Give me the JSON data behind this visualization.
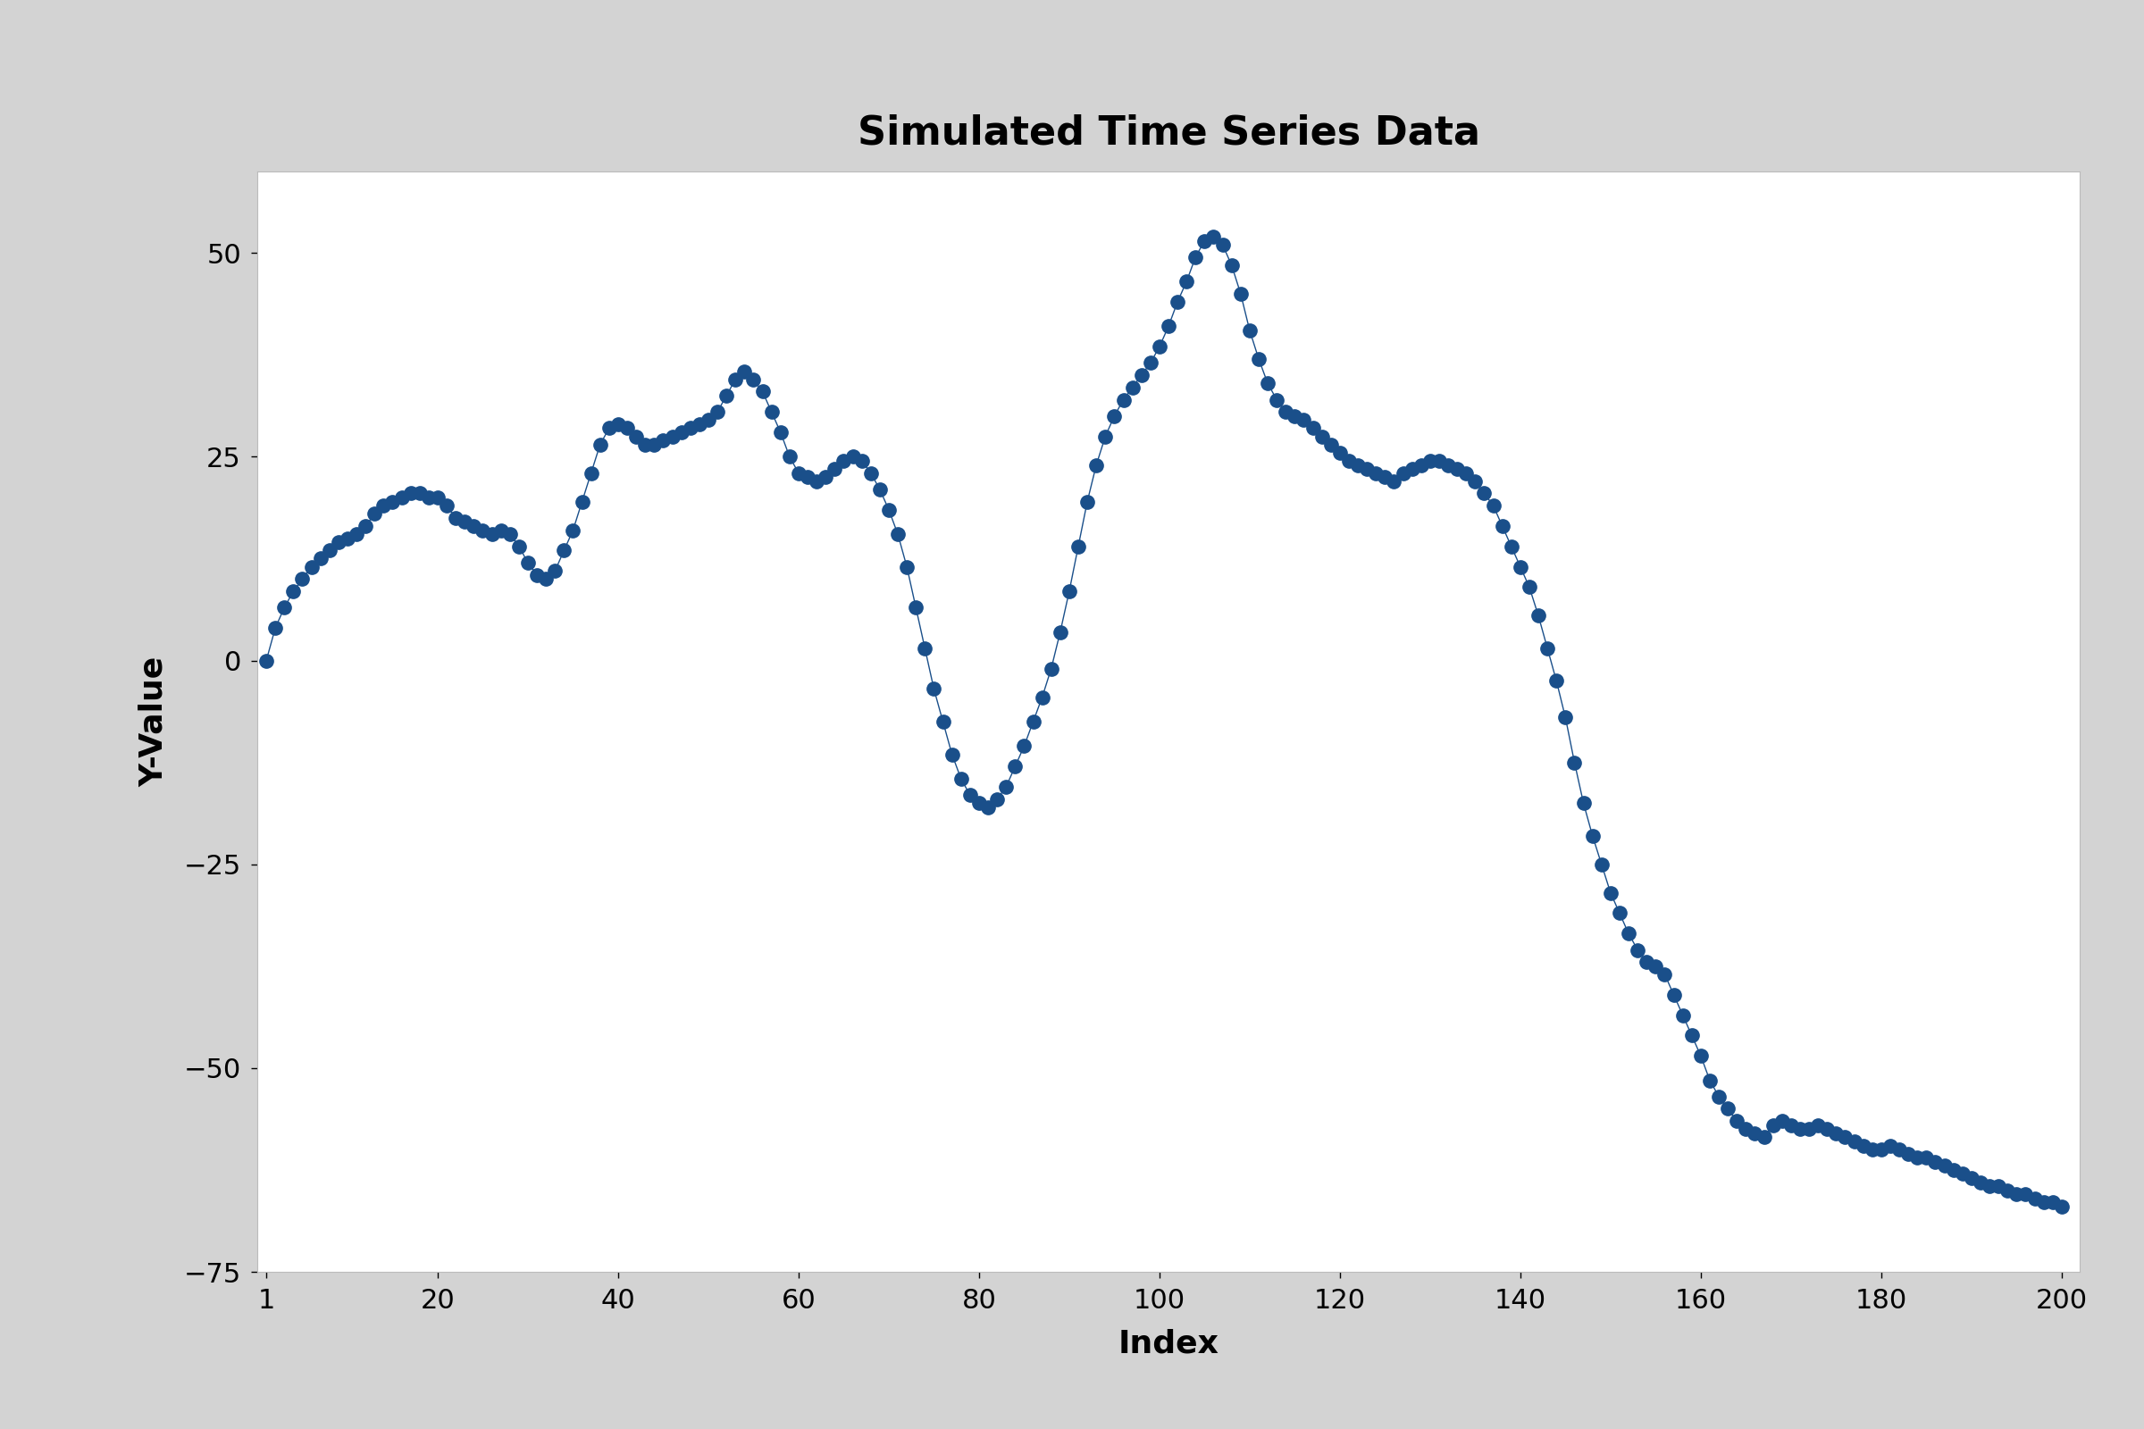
{
  "title": "Simulated Time Series Data",
  "xlabel": "Index",
  "ylabel": "Y-Value",
  "xlim": [
    1,
    200
  ],
  "ylim": [
    -75,
    60
  ],
  "xticks": [
    1,
    20,
    40,
    60,
    80,
    100,
    120,
    140,
    160,
    180,
    200
  ],
  "yticks": [
    -75,
    -50,
    -25,
    0,
    25,
    50
  ],
  "bg_outer": "#d3d3d3",
  "bg_inner": "#ffffff",
  "line_color": "#1a4f8a",
  "dot_color": "#1a4f8a",
  "title_fontsize": 32,
  "label_fontsize": 26,
  "tick_fontsize": 22,
  "line_width": 1.0,
  "marker_size": 11,
  "values": [
    0.0,
    4.0,
    6.5,
    8.5,
    10.0,
    11.5,
    12.5,
    13.5,
    14.5,
    15.0,
    15.5,
    16.5,
    18.0,
    19.0,
    19.5,
    20.0,
    20.5,
    20.5,
    20.0,
    20.0,
    19.0,
    17.5,
    17.0,
    16.5,
    16.0,
    15.5,
    16.0,
    15.5,
    14.0,
    12.0,
    10.5,
    10.0,
    11.0,
    13.5,
    16.0,
    19.5,
    23.0,
    26.5,
    28.5,
    29.0,
    28.5,
    27.5,
    26.5,
    26.5,
    27.0,
    27.5,
    28.0,
    28.5,
    29.0,
    29.5,
    30.5,
    32.5,
    34.5,
    35.5,
    34.5,
    33.0,
    30.5,
    28.0,
    25.0,
    23.0,
    22.5,
    22.0,
    22.5,
    23.5,
    24.5,
    25.0,
    24.5,
    23.0,
    21.0,
    18.5,
    15.5,
    11.5,
    6.5,
    1.5,
    -3.5,
    -7.5,
    -11.5,
    -14.5,
    -16.5,
    -17.5,
    -18.0,
    -17.0,
    -15.5,
    -13.0,
    -10.5,
    -7.5,
    -4.5,
    -1.0,
    3.5,
    8.5,
    14.0,
    19.5,
    24.0,
    27.5,
    30.0,
    32.0,
    33.5,
    35.0,
    36.5,
    38.5,
    41.0,
    44.0,
    46.5,
    49.5,
    51.5,
    52.0,
    51.0,
    48.5,
    45.0,
    40.5,
    37.0,
    34.0,
    32.0,
    30.5,
    30.0,
    29.5,
    28.5,
    27.5,
    26.5,
    25.5,
    24.5,
    24.0,
    23.5,
    23.0,
    22.5,
    22.0,
    23.0,
    23.5,
    24.0,
    24.5,
    24.5,
    24.0,
    23.5,
    23.0,
    22.0,
    20.5,
    19.0,
    16.5,
    14.0,
    11.5,
    9.0,
    5.5,
    1.5,
    -2.5,
    -7.0,
    -12.5,
    -17.5,
    -21.5,
    -25.0,
    -28.5,
    -31.0,
    -33.5,
    -35.5,
    -37.0,
    -37.5,
    -38.5,
    -41.0,
    -43.5,
    -46.0,
    -48.5,
    -51.5,
    -53.5,
    -55.0,
    -56.5,
    -57.5,
    -58.0,
    -58.5,
    -57.0,
    -56.5,
    -57.0,
    -57.5,
    -57.5,
    -57.0,
    -57.5,
    -58.0,
    -58.5,
    -59.0,
    -59.5,
    -60.0,
    -60.0,
    -59.5,
    -60.0,
    -60.5,
    -61.0,
    -61.0,
    -61.5,
    -62.0,
    -62.5,
    -63.0,
    -63.5,
    -64.0,
    -64.5,
    -64.5,
    -65.0,
    -65.5,
    -65.5,
    -66.0,
    -66.5,
    -66.5,
    -67.0
  ]
}
